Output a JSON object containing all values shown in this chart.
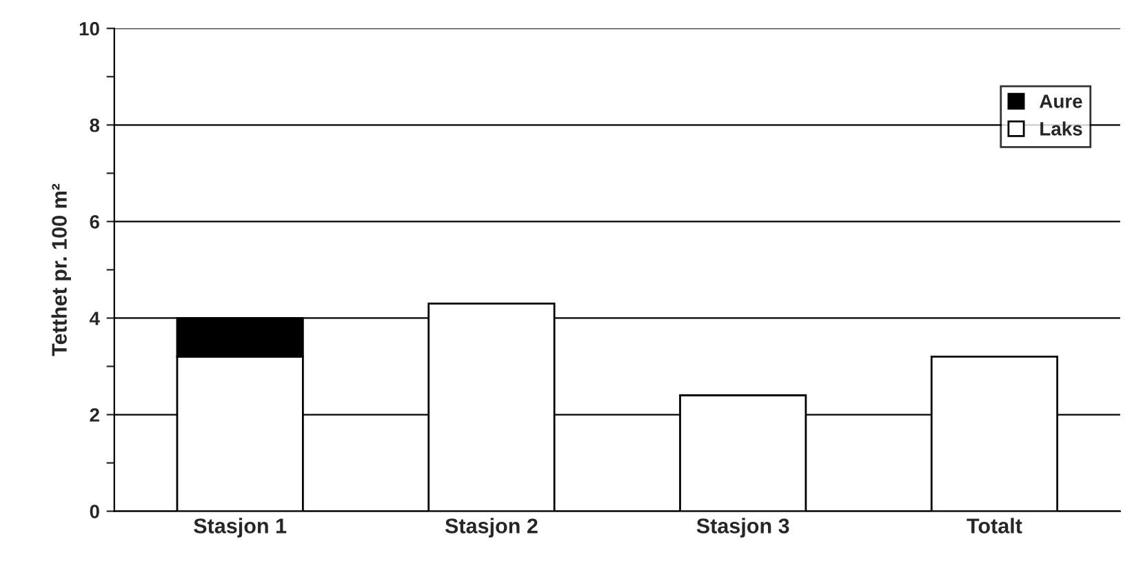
{
  "chart_data": {
    "type": "bar",
    "ylabel": "Tetthet pr. 100 m²",
    "categories": [
      "Stasjon 1",
      "Stasjon 2",
      "Stasjon 3",
      "Totalt"
    ],
    "stacked": true,
    "series": [
      {
        "name": "Laks",
        "color": "#ffffff",
        "values": [
          3.2,
          4.3,
          2.4,
          3.2
        ]
      },
      {
        "name": "Aure",
        "color": "#000000",
        "values": [
          0.8,
          null,
          null,
          null
        ]
      }
    ],
    "ylim": [
      0,
      10
    ],
    "yticks": [
      0,
      {
        "value": 1,
        "label": null
      },
      2,
      {
        "value": 3,
        "label": null
      },
      4,
      {
        "value": 5,
        "label": null
      },
      6,
      {
        "value": 7,
        "label": null
      },
      8,
      {
        "value": 9,
        "label": null
      },
      10
    ],
    "grid": "y",
    "legend": "top right"
  }
}
